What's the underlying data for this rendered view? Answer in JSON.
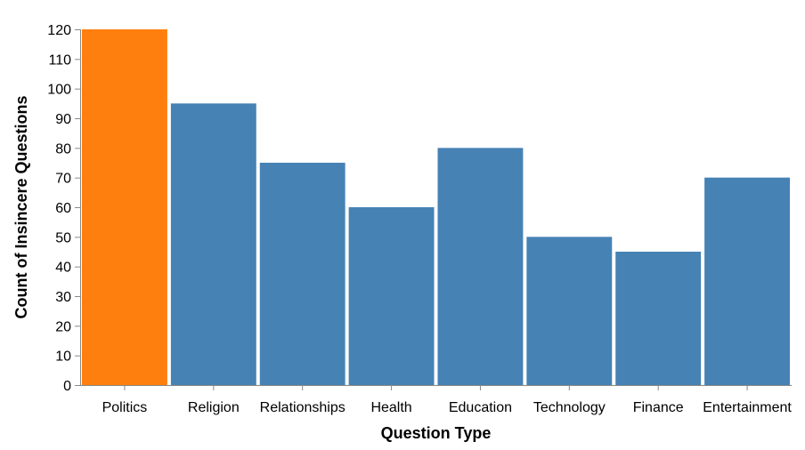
{
  "chart_data": {
    "type": "bar",
    "title": "",
    "xlabel": "Question Type",
    "ylabel": "Count of Insincere Questions",
    "categories": [
      "Politics",
      "Religion",
      "Relationships",
      "Health",
      "Education",
      "Technology",
      "Finance",
      "Entertainment"
    ],
    "values": [
      120,
      95,
      75,
      60,
      80,
      50,
      45,
      70
    ],
    "highlight_category": "Politics",
    "ylim": [
      0,
      120
    ],
    "yticks": [
      0,
      10,
      20,
      30,
      40,
      50,
      60,
      70,
      80,
      90,
      100,
      110,
      120
    ],
    "grid": false,
    "legend": "none",
    "colors": {
      "bar": "#4682b4",
      "highlight": "#ff7f0e"
    }
  }
}
